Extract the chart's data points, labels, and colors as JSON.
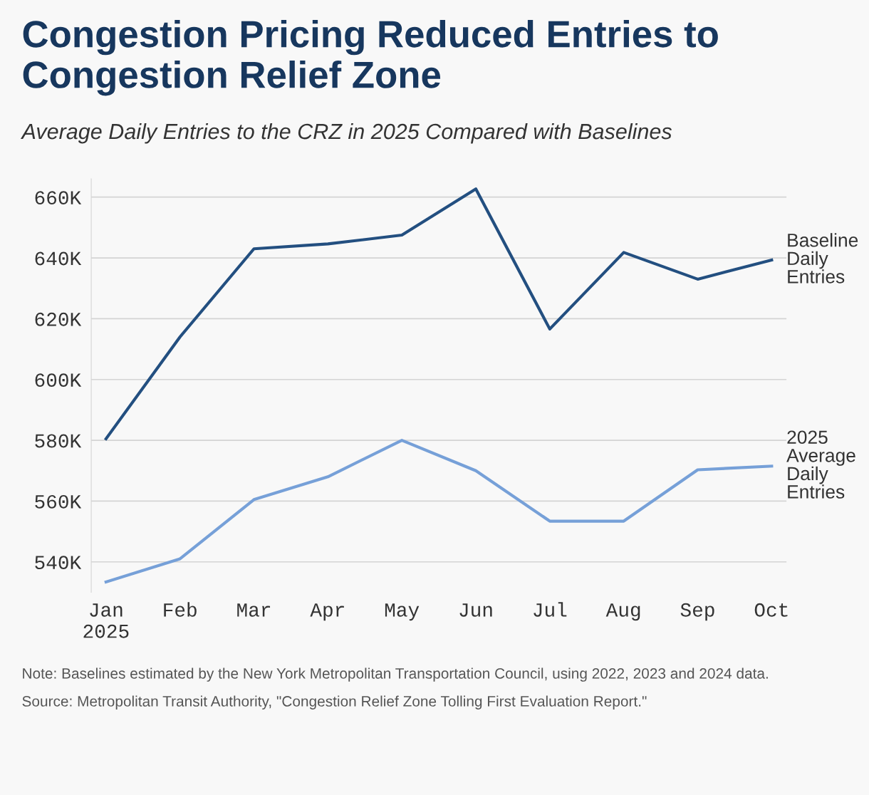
{
  "chart_data": {
    "type": "line",
    "title": "Congestion Pricing Reduced Entries to Congestion Relief Zone",
    "subtitle": "Average Daily Entries to the CRZ in 2025 Compared with Baselines",
    "categories": [
      "Jan\n2025",
      "Feb",
      "Mar",
      "Apr",
      "May",
      "Jun",
      "Jul",
      "Aug",
      "Sep",
      "Oct"
    ],
    "series": [
      {
        "name": "Baseline\nDaily\nEntries",
        "color": "#234f80",
        "values": [
          580.5,
          614,
          643,
          644.6,
          647.5,
          662.7,
          616.6,
          641.8,
          633,
          639.3
        ]
      },
      {
        "name": "2025\nAverage\nDaily\nEntries",
        "color": "#76a0d8",
        "values": [
          533.4,
          541,
          560.5,
          568,
          580,
          570,
          553.4,
          553.4,
          570.3,
          571.5
        ]
      }
    ],
    "ylim": [
      530,
      666
    ],
    "yticks": [
      {
        "value": 540,
        "label": "540K"
      },
      {
        "value": 560,
        "label": "560K"
      },
      {
        "value": 580,
        "label": "580K"
      },
      {
        "value": 600,
        "label": "600K"
      },
      {
        "value": 620,
        "label": "620K"
      },
      {
        "value": 640,
        "label": "640K"
      },
      {
        "value": 660,
        "label": "660K"
      }
    ],
    "grid": "y",
    "legend": false,
    "annotations": [
      "Note: Baselines estimated by the New York Metropolitan Transportation Council, using 2022, 2023 and 2024 data.",
      "Source: Metropolitan Transit Authority, \"Congestion Relief Zone Tolling First Evaluation Report.\""
    ]
  }
}
